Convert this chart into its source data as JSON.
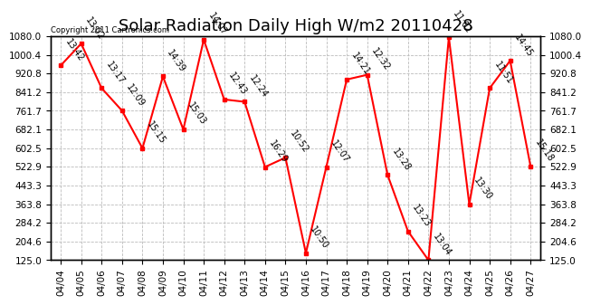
{
  "title": "Solar Radiation Daily High W/m2 20110428",
  "copyright": "Copyright 2011 Cartronics.com",
  "dates": [
    "04/04",
    "04/05",
    "04/06",
    "04/07",
    "04/08",
    "04/09",
    "04/10",
    "04/11",
    "04/12",
    "04/13",
    "04/14",
    "04/15",
    "04/16",
    "04/17",
    "04/18",
    "04/19",
    "04/20",
    "04/21",
    "04/22",
    "04/23",
    "04/24",
    "04/25",
    "04/26",
    "04/27"
  ],
  "values": [
    955,
    1048,
    858,
    762,
    602,
    908,
    682,
    1065,
    810,
    800,
    522,
    562,
    155,
    522,
    895,
    915,
    488,
    248,
    125,
    1075,
    363,
    858,
    975,
    525
  ],
  "labels": [
    "13:42",
    "13:02",
    "13:17",
    "12:09",
    "15:15",
    "14:39",
    "15:03",
    "14:07",
    "12:43",
    "12:24",
    "16:29",
    "10:52",
    "10:50",
    "12:07",
    "14:21",
    "12:32",
    "13:28",
    "13:23",
    "13:04",
    "11:02",
    "13:30",
    "11:51",
    "14:45",
    "15:18"
  ],
  "ymin": 125.0,
  "ymax": 1080.0,
  "yticks": [
    125.0,
    204.6,
    284.2,
    363.8,
    443.3,
    522.9,
    602.5,
    682.1,
    761.7,
    841.2,
    920.8,
    1000.4,
    1080.0
  ],
  "line_color": "#ff0000",
  "marker_color": "#ff0000",
  "bg_color": "#ffffff",
  "grid_color": "#bbbbbb",
  "title_fontsize": 13,
  "label_fontsize": 7,
  "tick_fontsize": 7.5
}
